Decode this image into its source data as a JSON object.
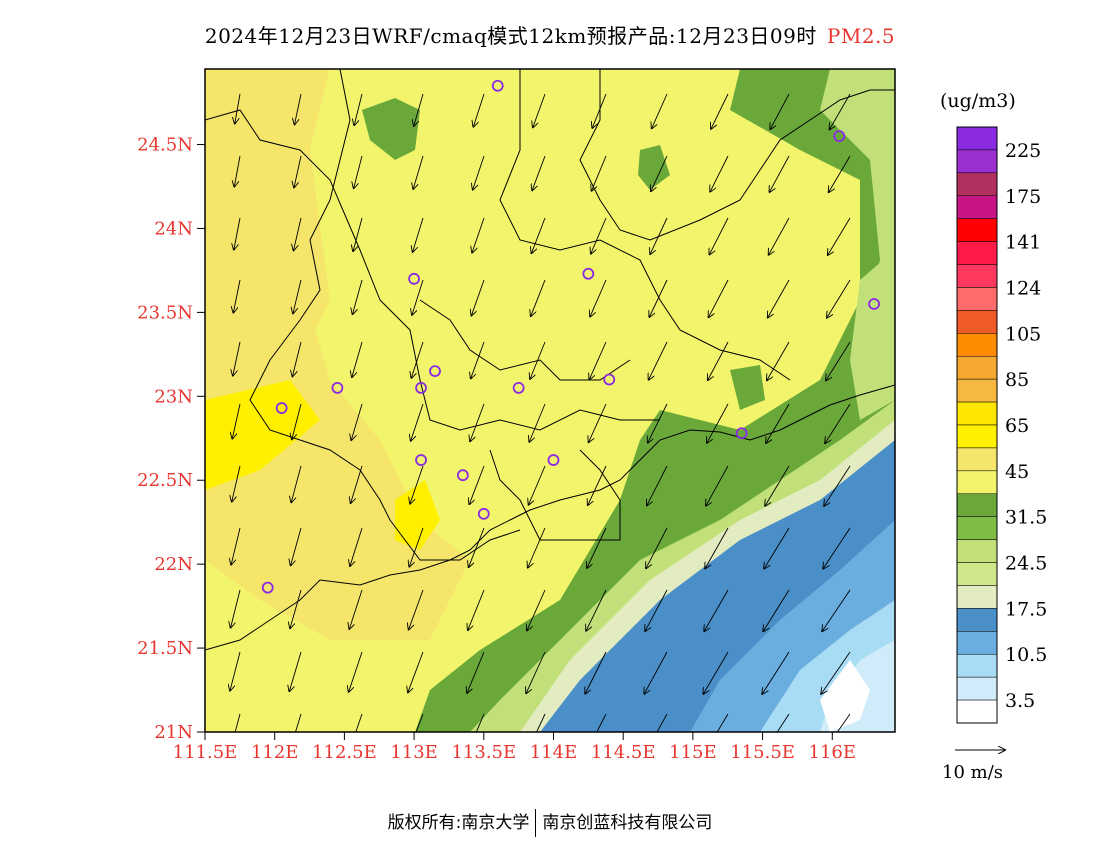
{
  "header": {
    "title": "2024年12月23日WRF/cmaq模式12km预报产品:12月23日09时",
    "pollutant": "PM2.5"
  },
  "axes": {
    "lat_ticks": [
      "24.5N",
      "24N",
      "23.5N",
      "23N",
      "22.5N",
      "22N",
      "21.5N",
      "21N"
    ],
    "lat_values": [
      24.5,
      24,
      23.5,
      23,
      22.5,
      22,
      21.5,
      21
    ],
    "lon_ticks": [
      "111.5E",
      "112E",
      "112.5E",
      "113E",
      "113.5E",
      "114E",
      "114.5E",
      "115E",
      "115.5E",
      "116E"
    ],
    "lon_values": [
      111.5,
      112,
      112.5,
      113,
      113.5,
      114,
      114.5,
      115,
      115.5,
      116
    ],
    "lat_range": [
      21,
      24.95
    ],
    "lon_range": [
      111.5,
      116.45
    ],
    "tick_label_color": "#e8362f"
  },
  "legend": {
    "unit": "(ug/m3)",
    "labels": [
      "225",
      "175",
      "141",
      "124",
      "105",
      "85",
      "65",
      "45",
      "31.5",
      "24.5",
      "17.5",
      "10.5",
      "3.5"
    ],
    "colors_top_to_bottom": [
      "#8a2be2",
      "#9b30d0",
      "#b03060",
      "#c71585",
      "#ff0000",
      "#ff1a4a",
      "#ff3860",
      "#ff6a6a",
      "#f05a28",
      "#ff8c00",
      "#f5a830",
      "#f5b840",
      "#ffe600",
      "#fff000",
      "#f5e66b",
      "#f2f56b",
      "#6aa83a",
      "#7ebc45",
      "#c2e07a",
      "#cfe88c",
      "#e2ecc0",
      "#4a8fc8",
      "#6aaee0",
      "#a8dcf5",
      "#d0ecfa",
      "#ffffff"
    ]
  },
  "wind": {
    "reference_label": "10 m/s"
  },
  "footer": {
    "copyright": "版权所有:南京大学",
    "company": "南京创蓝科技有限公司"
  },
  "colors": {
    "pm_20_30": "#6aa83a",
    "pm_30_40": "#f2f56b",
    "pm_40_50": "#f5e66b",
    "pm_50_60": "#fff000",
    "sea_low": "#4a8fc8",
    "sea_mid": "#6aaee0",
    "sea_light": "#a8dcf5",
    "sea_pale": "#d0ecfa",
    "green_light": "#c2e07a",
    "green_pale": "#e2ecc0",
    "station": "#8a2be2"
  },
  "stations": [
    {
      "lon": 113.6,
      "lat": 24.85
    },
    {
      "lon": 116.05,
      "lat": 24.55
    },
    {
      "lon": 114.25,
      "lat": 23.73
    },
    {
      "lon": 113.0,
      "lat": 23.7
    },
    {
      "lon": 116.3,
      "lat": 23.55
    },
    {
      "lon": 113.15,
      "lat": 23.15
    },
    {
      "lon": 112.45,
      "lat": 23.05
    },
    {
      "lon": 113.05,
      "lat": 23.05
    },
    {
      "lon": 113.75,
      "lat": 23.05
    },
    {
      "lon": 114.4,
      "lat": 23.1
    },
    {
      "lon": 112.05,
      "lat": 22.93
    },
    {
      "lon": 115.35,
      "lat": 22.78
    },
    {
      "lon": 113.05,
      "lat": 22.62
    },
    {
      "lon": 114.0,
      "lat": 22.62
    },
    {
      "lon": 113.35,
      "lat": 22.53
    },
    {
      "lon": 113.5,
      "lat": 22.3
    },
    {
      "lon": 111.95,
      "lat": 21.86
    }
  ]
}
